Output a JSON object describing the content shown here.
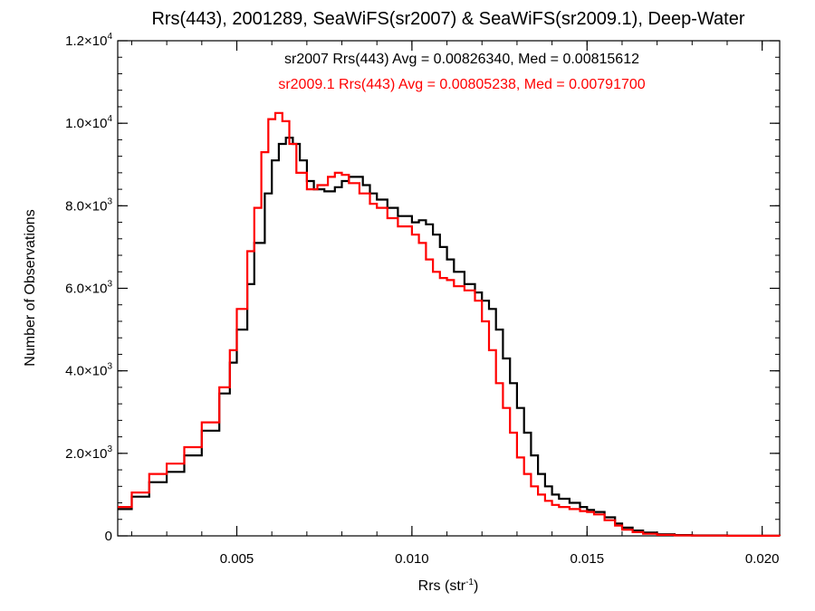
{
  "chart_data": {
    "type": "line",
    "step": true,
    "title": "Rrs(443), 2001289, SeaWiFS(sr2007) & SeaWiFS(sr2009.1), Deep-Water",
    "xlabel": "Rrs (str",
    "xlabel_sup": "-1",
    "xlabel_end": ")",
    "ylabel": "Number of Observations",
    "xlim": [
      0.0016,
      0.0205
    ],
    "ylim": [
      0,
      12000
    ],
    "x_ticks": [
      {
        "value": 0.005,
        "label": "0.005"
      },
      {
        "value": 0.01,
        "label": "0.010"
      },
      {
        "value": 0.015,
        "label": "0.015"
      },
      {
        "value": 0.02,
        "label": "0.020"
      }
    ],
    "y_ticks": [
      {
        "value": 0,
        "mant": "0",
        "exp": ""
      },
      {
        "value": 2000,
        "mant": "2.0×10",
        "exp": "3"
      },
      {
        "value": 4000,
        "mant": "4.0×10",
        "exp": "3"
      },
      {
        "value": 6000,
        "mant": "6.0×10",
        "exp": "3"
      },
      {
        "value": 8000,
        "mant": "8.0×10",
        "exp": "3"
      },
      {
        "value": 10000,
        "mant": "1.0×10",
        "exp": "4"
      },
      {
        "value": 12000,
        "mant": "1.2×10",
        "exp": "4"
      }
    ],
    "legend_placement": "top-center",
    "series": [
      {
        "name": "sr2007",
        "color": "#000000",
        "legend_text": "sr2007 Rrs(443) Avg = 0.00826340, Med = 0.00815612",
        "x": [
          0.0016,
          0.002,
          0.0025,
          0.003,
          0.0035,
          0.004,
          0.0045,
          0.0048,
          0.005,
          0.0053,
          0.0055,
          0.0058,
          0.006,
          0.0062,
          0.0064,
          0.0066,
          0.0068,
          0.007,
          0.0072,
          0.0075,
          0.0078,
          0.008,
          0.0082,
          0.0084,
          0.0086,
          0.0088,
          0.009,
          0.0093,
          0.0096,
          0.01,
          0.0102,
          0.0104,
          0.0106,
          0.0108,
          0.011,
          0.0112,
          0.0115,
          0.0118,
          0.012,
          0.0122,
          0.0124,
          0.0126,
          0.0128,
          0.013,
          0.0132,
          0.0134,
          0.0136,
          0.0138,
          0.014,
          0.0142,
          0.0145,
          0.0148,
          0.015,
          0.0152,
          0.0155,
          0.0158,
          0.016,
          0.0163,
          0.0166,
          0.017,
          0.0175,
          0.018,
          0.019,
          0.0205
        ],
        "values": [
          650,
          950,
          1300,
          1550,
          1950,
          2550,
          3450,
          4200,
          5000,
          6100,
          7100,
          8300,
          9100,
          9500,
          9650,
          9500,
          9100,
          8600,
          8400,
          8350,
          8450,
          8600,
          8700,
          8700,
          8500,
          8300,
          8150,
          7950,
          7750,
          7600,
          7650,
          7550,
          7300,
          7000,
          6700,
          6400,
          6100,
          5900,
          5700,
          5500,
          5000,
          4300,
          3700,
          3100,
          2500,
          1950,
          1500,
          1200,
          1000,
          900,
          800,
          700,
          630,
          580,
          450,
          300,
          200,
          130,
          80,
          40,
          20,
          10,
          5,
          0
        ]
      },
      {
        "name": "sr2009.1",
        "color": "#ff0000",
        "legend_text": "sr2009.1 Rrs(443) Avg = 0.00805238, Med = 0.00791700",
        "x": [
          0.0016,
          0.002,
          0.0025,
          0.003,
          0.0035,
          0.004,
          0.0045,
          0.0048,
          0.005,
          0.0053,
          0.0055,
          0.0057,
          0.0059,
          0.0061,
          0.0063,
          0.0065,
          0.0067,
          0.007,
          0.0073,
          0.0076,
          0.0078,
          0.008,
          0.0082,
          0.0085,
          0.0088,
          0.009,
          0.0093,
          0.0096,
          0.01,
          0.0102,
          0.0104,
          0.0106,
          0.0108,
          0.011,
          0.0112,
          0.0115,
          0.0118,
          0.012,
          0.0122,
          0.0124,
          0.0126,
          0.0128,
          0.013,
          0.0132,
          0.0134,
          0.0136,
          0.0138,
          0.014,
          0.0142,
          0.0145,
          0.0148,
          0.015,
          0.0152,
          0.0155,
          0.0158,
          0.016,
          0.0163,
          0.0166,
          0.017,
          0.0175,
          0.018,
          0.019,
          0.0205
        ],
        "values": [
          700,
          1050,
          1500,
          1750,
          2150,
          2750,
          3600,
          4500,
          5500,
          6900,
          7950,
          9300,
          10100,
          10250,
          10050,
          9500,
          8800,
          8400,
          8500,
          8700,
          8800,
          8750,
          8550,
          8300,
          8050,
          7950,
          7700,
          7500,
          7300,
          7100,
          6700,
          6400,
          6250,
          6200,
          6050,
          5950,
          5700,
          5200,
          4500,
          3700,
          3100,
          2500,
          1900,
          1500,
          1200,
          1000,
          850,
          750,
          700,
          650,
          600,
          580,
          520,
          380,
          250,
          150,
          90,
          50,
          25,
          12,
          6,
          3,
          0
        ]
      }
    ]
  }
}
